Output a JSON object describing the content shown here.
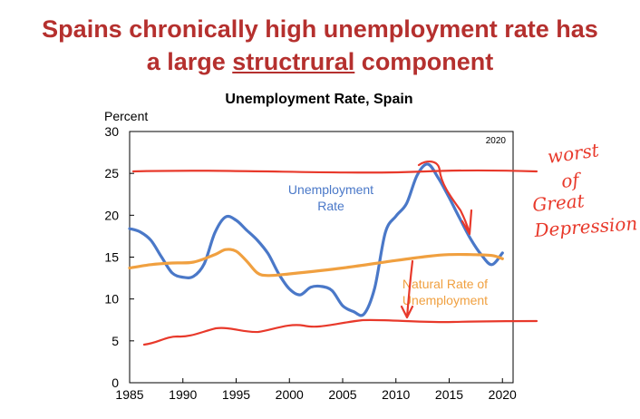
{
  "slide": {
    "title_line1": "Spains chronically high unemployment rate has",
    "title_line2_prefix": "a large ",
    "title_line2_underlined": "structrural",
    "title_line2_suffix": " component"
  },
  "chart_data": {
    "type": "line",
    "title": "Unemployment Rate, Spain",
    "ylabel": "Percent",
    "corner_label": "2020",
    "xlim": [
      1985,
      2021
    ],
    "ylim": [
      0,
      30
    ],
    "xticks": [
      1985,
      1990,
      1995,
      2000,
      2005,
      2010,
      2015,
      2020
    ],
    "yticks": [
      0,
      5,
      10,
      15,
      20,
      25,
      30
    ],
    "series": [
      {
        "name": "Unemployment Rate",
        "name_lines": [
          "Unemployment",
          "Rate"
        ],
        "color": "#4a78c8",
        "x": [
          1985,
          1986,
          1987,
          1988,
          1989,
          1990,
          1991,
          1992,
          1993,
          1994,
          1995,
          1996,
          1997,
          1998,
          1999,
          2000,
          2001,
          2002,
          2003,
          2004,
          2005,
          2006,
          2007,
          2008,
          2009,
          2010,
          2011,
          2012,
          2013,
          2014,
          2015,
          2016,
          2017,
          2018,
          2019,
          2020
        ],
        "values": [
          18.4,
          18.0,
          17.0,
          15.0,
          13.1,
          12.6,
          12.7,
          14.2,
          17.9,
          19.8,
          19.4,
          18.2,
          17.0,
          15.4,
          13.0,
          11.2,
          10.5,
          11.4,
          11.5,
          11.0,
          9.2,
          8.5,
          8.2,
          11.3,
          17.9,
          19.9,
          21.4,
          24.8,
          26.1,
          24.4,
          22.1,
          19.6,
          17.2,
          15.3,
          14.1,
          15.5
        ]
      },
      {
        "name": "Natural Rate of Unemployment",
        "name_lines": [
          "Natural Rate of",
          "Unemployment"
        ],
        "color": "#f0a040",
        "x": [
          1985,
          1987,
          1989,
          1991,
          1993,
          1994,
          1995,
          1996,
          1997,
          1998,
          2000,
          2005,
          2010,
          2013,
          2015,
          2017,
          2019,
          2020
        ],
        "values": [
          13.7,
          14.1,
          14.3,
          14.4,
          15.3,
          15.9,
          15.7,
          14.5,
          13.1,
          12.8,
          13.0,
          13.7,
          14.6,
          15.1,
          15.3,
          15.3,
          15.2,
          14.8
        ]
      }
    ]
  },
  "annotations": {
    "handwriting_lines": [
      "worst",
      "of",
      "Great",
      "Depression"
    ]
  }
}
